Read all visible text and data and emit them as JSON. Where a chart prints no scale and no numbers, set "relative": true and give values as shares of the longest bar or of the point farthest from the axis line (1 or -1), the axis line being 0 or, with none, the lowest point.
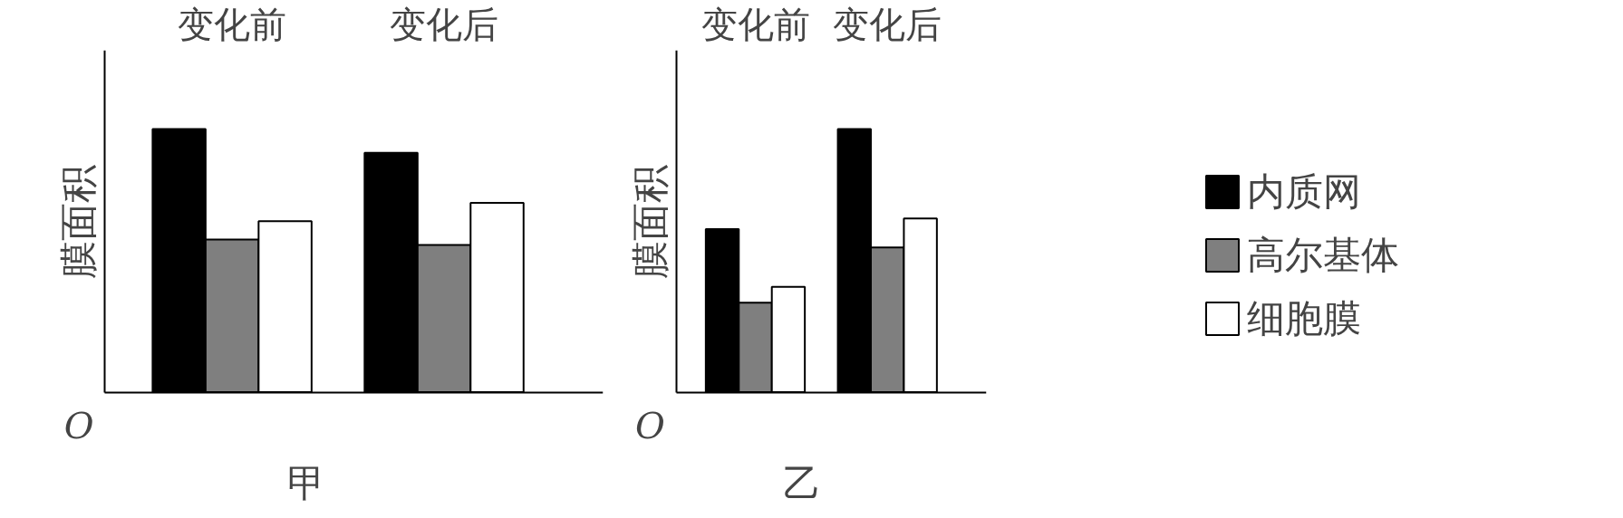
{
  "chart_data": [
    {
      "type": "bar",
      "relative": true,
      "categories": [
        "变化前",
        "变化后"
      ],
      "xlabel": "甲",
      "ylabel": "膜面积",
      "annotations": [
        "O"
      ],
      "series": [
        {
          "color": "#000000",
          "values": [
            1,
            0.91
          ]
        },
        {
          "color": "#7f7f7f",
          "values": [
            0.58,
            0.56
          ]
        },
        {
          "color": "#ffffff",
          "values": [
            0.65,
            0.72
          ]
        }
      ]
    },
    {
      "type": "bar",
      "relative": true,
      "categories": [
        "变化前",
        "变化后"
      ],
      "xlabel": "乙",
      "ylabel": "膜面积",
      "annotations": [
        "O"
      ],
      "legend": "right",
      "series": [
        {
          "name": "内质网",
          "color": "#000000",
          "values": [
            0.62,
            1
          ]
        },
        {
          "name": "高尔基体",
          "color": "#7f7f7f",
          "values": [
            0.34,
            0.55
          ]
        },
        {
          "name": "细胞膜",
          "color": "#ffffff",
          "values": [
            0.4,
            0.66
          ]
        }
      ]
    }
  ]
}
